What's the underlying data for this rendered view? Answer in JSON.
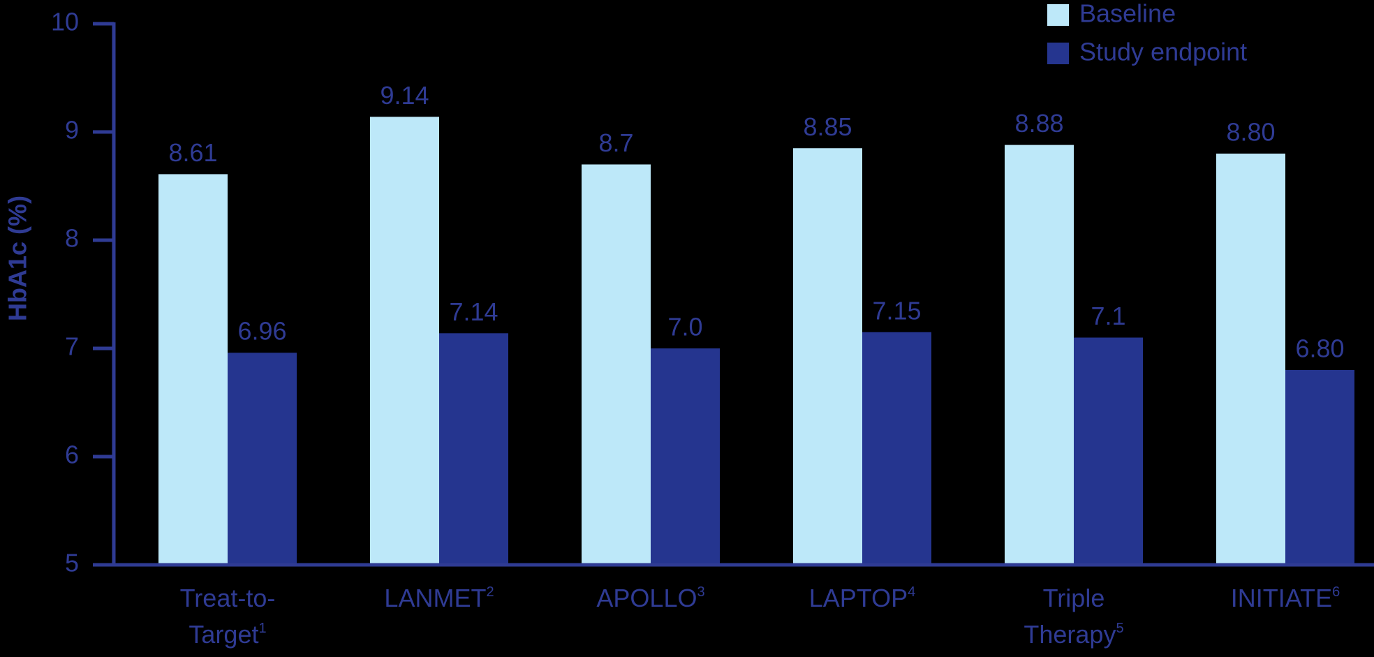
{
  "chart_data": {
    "type": "bar",
    "y_label": "HbA1c (%)",
    "categories": [
      "Treat-to-Target",
      "LANMET",
      "APOLLO",
      "LAPTOP",
      "Triple Therapy",
      "INITIATE"
    ],
    "category_refs": [
      "1",
      "2",
      "3",
      "4",
      "5",
      "6"
    ],
    "series": [
      {
        "name": "Baseline",
        "color": "#bde8f9",
        "values": [
          8.61,
          9.14,
          8.7,
          8.85,
          8.88,
          8.8
        ],
        "value_labels": [
          "8.61",
          "9.14",
          "8.7",
          "8.85",
          "8.88",
          "8.80"
        ]
      },
      {
        "name": "Study endpoint",
        "color": "#25358f",
        "values": [
          6.96,
          7.14,
          7.0,
          7.15,
          7.1,
          6.8
        ],
        "value_labels": [
          "6.96",
          "7.14",
          "7.0",
          "7.15",
          "7.1",
          "6.80"
        ]
      }
    ],
    "ylim": [
      5,
      10
    ],
    "yticks": [
      5,
      6,
      7,
      8,
      9,
      10
    ],
    "grid": false,
    "legend": "top-right"
  }
}
